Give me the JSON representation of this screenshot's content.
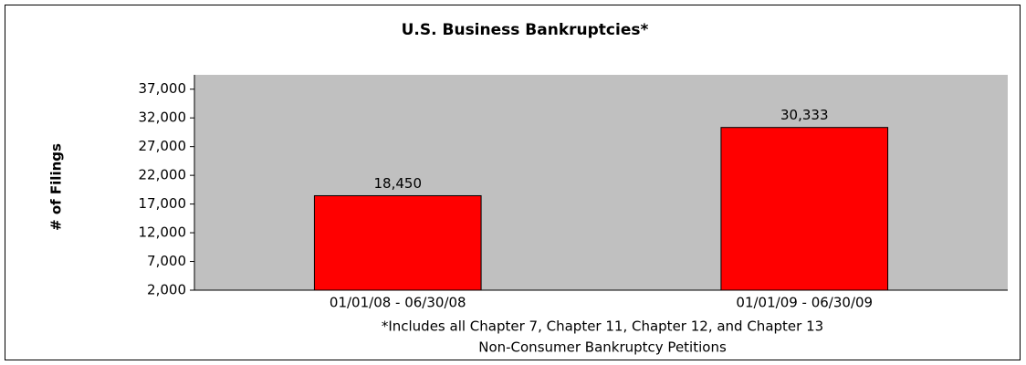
{
  "chart_data": {
    "type": "bar",
    "title": "U.S. Business Bankruptcies*",
    "y_label": "# of Filings",
    "categories": [
      "01/01/08 - 06/30/08",
      "01/01/09 - 06/30/09"
    ],
    "values": [
      18450,
      30333
    ],
    "value_labels": [
      "18,450",
      "30,333"
    ],
    "color": "#ff0000",
    "ylim": [
      2000,
      39500
    ],
    "yticks": [
      {
        "value": 2000,
        "label": "2,000"
      },
      {
        "value": 7000,
        "label": "7,000"
      },
      {
        "value": 12000,
        "label": "12,000"
      },
      {
        "value": 17000,
        "label": "17,000"
      },
      {
        "value": 22000,
        "label": "22,000"
      },
      {
        "value": 27000,
        "label": "27,000"
      },
      {
        "value": 32000,
        "label": "32,000"
      },
      {
        "value": 37000,
        "label": "37,000"
      }
    ],
    "grid": false,
    "notes": [
      "*Includes all Chapter 7, Chapter 11, Chapter 12, and Chapter 13",
      "Non-Consumer Bankruptcy Petitions"
    ]
  }
}
